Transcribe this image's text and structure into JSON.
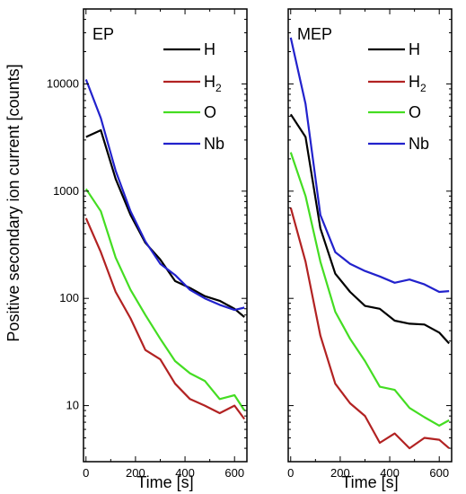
{
  "chart_data": [
    {
      "type": "line",
      "title": "EP",
      "xlabel": "Time [s]",
      "ylabel": "Positive secondary ion current [counts]",
      "xlim": [
        -10,
        650
      ],
      "ylim": [
        3,
        50000
      ],
      "yscale": "log",
      "xticks": [
        0,
        200,
        400,
        600
      ],
      "yticks": [
        10,
        100,
        1000,
        10000
      ],
      "ytick_labels": [
        "10",
        "100",
        "1000",
        "10000"
      ],
      "legend": "top-right",
      "series": [
        {
          "name": "H",
          "sub": "",
          "color": "#000000",
          "x": [
            0,
            60,
            120,
            180,
            240,
            300,
            360,
            420,
            480,
            540,
            600,
            640
          ],
          "y": [
            3200,
            3700,
            1300,
            600,
            330,
            230,
            145,
            125,
            105,
            95,
            80,
            67
          ]
        },
        {
          "name": "H",
          "sub": "2",
          "color": "#b22222",
          "x": [
            0,
            60,
            120,
            180,
            240,
            300,
            360,
            420,
            480,
            540,
            600,
            640
          ],
          "y": [
            560,
            270,
            115,
            65,
            33,
            27,
            16,
            11.5,
            10,
            8.5,
            10,
            7.5
          ]
        },
        {
          "name": "O",
          "sub": "",
          "color": "#44dd22",
          "x": [
            0,
            60,
            120,
            180,
            240,
            300,
            360,
            420,
            480,
            540,
            600,
            640
          ],
          "y": [
            1050,
            650,
            240,
            120,
            70,
            42,
            26,
            20,
            17,
            11.5,
            12.5,
            9
          ]
        },
        {
          "name": "Nb",
          "sub": "",
          "color": "#2222cc",
          "x": [
            0,
            60,
            120,
            180,
            240,
            300,
            360,
            420,
            480,
            540,
            600,
            640
          ],
          "y": [
            11000,
            4800,
            1550,
            650,
            340,
            210,
            165,
            120,
            100,
            87,
            78,
            82
          ]
        }
      ]
    },
    {
      "type": "line",
      "title": "MEP",
      "xlabel": "Time [s]",
      "ylabel": "",
      "xlim": [
        -10,
        650
      ],
      "ylim": [
        3,
        50000
      ],
      "yscale": "log",
      "xticks": [
        0,
        200,
        400,
        600
      ],
      "legend": "top-right",
      "series": [
        {
          "name": "H",
          "sub": "",
          "color": "#000000",
          "x": [
            0,
            60,
            120,
            180,
            240,
            300,
            360,
            420,
            480,
            540,
            600,
            640
          ],
          "y": [
            5200,
            3200,
            450,
            170,
            115,
            85,
            80,
            62,
            58,
            57,
            48,
            38
          ]
        },
        {
          "name": "H",
          "sub": "2",
          "color": "#b22222",
          "x": [
            0,
            60,
            120,
            180,
            240,
            300,
            360,
            420,
            480,
            540,
            600,
            640
          ],
          "y": [
            700,
            220,
            45,
            16,
            10.5,
            8,
            4.5,
            5.5,
            4,
            5,
            4.8,
            4
          ]
        },
        {
          "name": "O",
          "sub": "",
          "color": "#44dd22",
          "x": [
            0,
            60,
            120,
            180,
            240,
            300,
            360,
            420,
            480,
            540,
            600,
            640
          ],
          "y": [
            2300,
            900,
            220,
            75,
            42,
            26,
            15,
            14,
            9.5,
            7.8,
            6.5,
            7.3
          ]
        },
        {
          "name": "Nb",
          "sub": "",
          "color": "#2222cc",
          "x": [
            0,
            60,
            120,
            180,
            240,
            300,
            360,
            420,
            480,
            540,
            600,
            640
          ],
          "y": [
            27000,
            6500,
            600,
            270,
            210,
            180,
            160,
            140,
            150,
            135,
            115,
            117
          ]
        }
      ]
    }
  ]
}
